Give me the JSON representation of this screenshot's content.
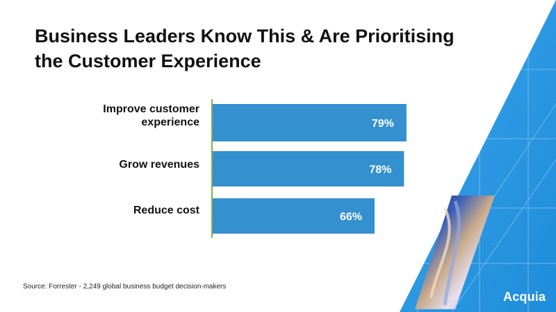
{
  "slide": {
    "title_lines": [
      "Business Leaders Know This & Are Prioritising",
      "the Customer Experience"
    ],
    "source": "Source: Forrester - 2,249 global business budget decision-makers",
    "logo_text": "Acquia"
  },
  "colors": {
    "bar": "#3490cf",
    "axis_line": "#7cb342",
    "bar_label": "#ffffff",
    "decor_blue": "#2b9be6"
  },
  "chart_data": {
    "type": "bar",
    "orientation": "horizontal",
    "categories": [
      "Improve customer experience",
      "Grow revenues",
      "Reduce cost"
    ],
    "category_lines": [
      [
        "Improve customer",
        "experience"
      ],
      [
        "Grow revenues"
      ],
      [
        "Reduce cost"
      ]
    ],
    "values": [
      79,
      78,
      66
    ],
    "value_labels": [
      "79%",
      "78%",
      "66%"
    ],
    "title": "",
    "xlabel": "",
    "ylabel": "",
    "xlim": [
      0,
      100
    ],
    "grid": false,
    "legend": "none"
  }
}
